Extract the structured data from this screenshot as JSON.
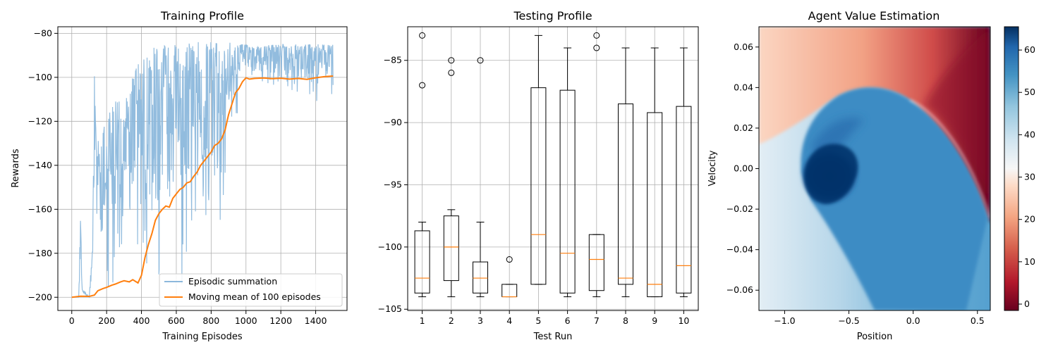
{
  "chart_data": [
    {
      "type": "line",
      "title": "Training Profile",
      "xlabel": "Training Episodes",
      "ylabel": "Rewards",
      "xlim": [
        -80,
        1580
      ],
      "ylim": [
        -206,
        -77
      ],
      "xticks": [
        0,
        200,
        400,
        600,
        800,
        1000,
        1200,
        1400
      ],
      "yticks": [
        -200,
        -180,
        -160,
        -140,
        -120,
        -100,
        -80
      ],
      "grid": true,
      "legend_position": "lower-right",
      "series": [
        {
          "name": "Episodic summation",
          "color": "#8cb8dc",
          "note_shape": "noisy",
          "envelope_episodes": [
            0,
            40,
            50,
            60,
            100,
            120,
            130,
            140,
            200,
            250,
            300,
            350,
            400,
            450,
            500,
            550,
            600,
            650,
            700,
            750,
            800,
            850,
            900,
            950,
            1000,
            1050,
            1100,
            1150,
            1200,
            1250,
            1300,
            1350,
            1400,
            1450,
            1500
          ],
          "envelope_upper": [
            -200,
            -200,
            -162,
            -196,
            -200,
            -175,
            -95,
            -130,
            -118,
            -110,
            -112,
            -100,
            -90,
            -87,
            -86,
            -85,
            -85,
            -84,
            -84,
            -84,
            -84,
            -84,
            -84,
            -85,
            -85,
            -86,
            -86,
            -85,
            -85,
            -85,
            -85,
            -85,
            -85,
            -85,
            -85
          ],
          "envelope_lower": [
            -200,
            -200,
            -200,
            -200,
            -200,
            -200,
            -200,
            -200,
            -200,
            -200,
            -200,
            -200,
            -200,
            -200,
            -200,
            -200,
            -200,
            -200,
            -200,
            -190,
            -185,
            -170,
            -160,
            -125,
            -104,
            -106,
            -108,
            -108,
            -110,
            -110,
            -110,
            -112,
            -112,
            -112,
            -110
          ]
        },
        {
          "name": "Moving mean of 100 episodes",
          "color": "#ff7f0e",
          "x": [
            0,
            50,
            100,
            130,
            150,
            180,
            200,
            230,
            250,
            280,
            300,
            330,
            350,
            380,
            400,
            420,
            440,
            460,
            480,
            500,
            520,
            540,
            560,
            580,
            600,
            620,
            640,
            660,
            680,
            700,
            720,
            740,
            760,
            780,
            800,
            820,
            840,
            860,
            880,
            900,
            920,
            940,
            960,
            980,
            1000,
            1020,
            1050,
            1100,
            1150,
            1200,
            1250,
            1300,
            1350,
            1400,
            1450,
            1500
          ],
          "y": [
            -200,
            -199.5,
            -199.6,
            -199,
            -197,
            -196,
            -195.5,
            -194.5,
            -194,
            -193,
            -192.5,
            -193,
            -192,
            -193.5,
            -190,
            -182,
            -176,
            -171,
            -165,
            -162,
            -160,
            -158.5,
            -159,
            -155,
            -153,
            -151,
            -150,
            -148,
            -147.5,
            -145,
            -143,
            -140,
            -138,
            -136,
            -134,
            -131,
            -130,
            -128,
            -124,
            -117,
            -112,
            -107,
            -105,
            -102,
            -100.2,
            -100.8,
            -100.5,
            -100.3,
            -100.6,
            -100.4,
            -100.8,
            -100.5,
            -100.9,
            -100.2,
            -99.7,
            -99.4
          ]
        }
      ]
    },
    {
      "type": "box",
      "title": "Testing Profile",
      "xlabel": "Test Run",
      "ylabel": "",
      "xlim": [
        0.5,
        10.5
      ],
      "ylim": [
        -105.1,
        -82.3
      ],
      "categories": [
        "1",
        "2",
        "3",
        "4",
        "5",
        "6",
        "7",
        "8",
        "9",
        "10"
      ],
      "yticks": [
        -105,
        -100,
        -95,
        -90,
        -85
      ],
      "grid": true,
      "boxes": [
        {
          "whislo": -104,
          "q1": -103.7,
          "med": -102.5,
          "q3": -98.7,
          "whishi": -98,
          "fliers": [
            -87,
            -83
          ]
        },
        {
          "whislo": -104,
          "q1": -102.7,
          "med": -100,
          "q3": -97.5,
          "whishi": -97,
          "fliers": [
            -86,
            -85
          ]
        },
        {
          "whislo": -104,
          "q1": -103.7,
          "med": -102.5,
          "q3": -101.2,
          "whishi": -98,
          "fliers": [
            -85
          ]
        },
        {
          "whislo": -104,
          "q1": -104,
          "med": -104,
          "q3": -103,
          "whishi": -103,
          "fliers": [
            -101
          ]
        },
        {
          "whislo": -103,
          "q1": -103,
          "med": -99,
          "q3": -87.2,
          "whishi": -83,
          "fliers": []
        },
        {
          "whislo": -104,
          "q1": -103.7,
          "med": -100.5,
          "q3": -87.4,
          "whishi": -84,
          "fliers": []
        },
        {
          "whislo": -104,
          "q1": -103.5,
          "med": -101,
          "q3": -99,
          "whishi": -99,
          "fliers": [
            -84,
            -83
          ]
        },
        {
          "whislo": -104,
          "q1": -103,
          "med": -102.5,
          "q3": -88.5,
          "whishi": -84,
          "fliers": []
        },
        {
          "whislo": -104,
          "q1": -104,
          "med": -103,
          "q3": -89.2,
          "whishi": -84,
          "fliers": []
        },
        {
          "whislo": -104,
          "q1": -103.7,
          "med": -101.5,
          "q3": -88.7,
          "whishi": -84,
          "fliers": []
        }
      ]
    },
    {
      "type": "heatmap",
      "title": "Agent Value Estimation",
      "xlabel": "Position",
      "ylabel": "Velocity",
      "xlim": [
        -1.2,
        0.6
      ],
      "ylim": [
        -0.07,
        0.07
      ],
      "xticks": [
        -1.0,
        -0.5,
        0.0,
        0.5
      ],
      "yticks": [
        -0.06,
        -0.04,
        -0.02,
        0.0,
        0.02,
        0.04,
        0.06
      ],
      "colormap": "RdBu",
      "colorbar_range": [
        -1.5,
        65.5
      ],
      "colorbar_ticks": [
        0,
        10,
        20,
        30,
        40,
        50,
        60
      ],
      "value_regions": [
        {
          "region": "upper-right corner (high position, high velocity)",
          "value": 0
        },
        {
          "region": "top-left band",
          "value": 22
        },
        {
          "region": "lower-left and lower-middle",
          "value": 38
        },
        {
          "region": "central crescent",
          "value": 52
        },
        {
          "region": "core near position -0.6, velocity 0.0",
          "value": 64
        }
      ]
    }
  ]
}
